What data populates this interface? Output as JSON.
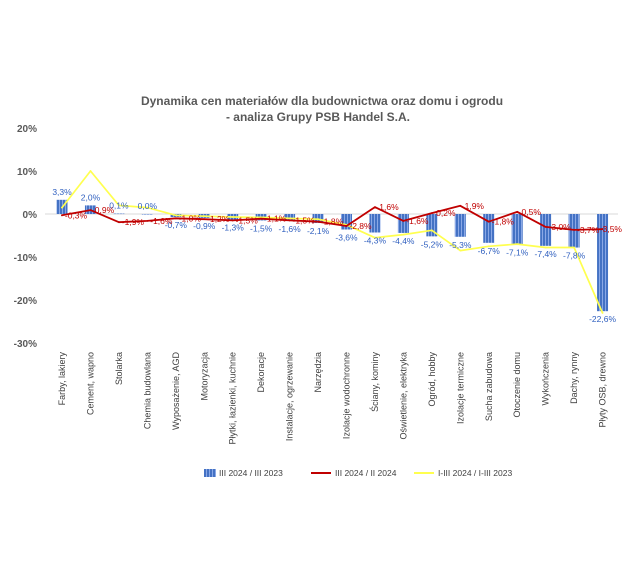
{
  "chart_data": {
    "type": "bar",
    "title": "Dynamika cen materiałów dla budownictwa oraz domu i ogrodu",
    "subtitle": "- analiza Grupy PSB Handel S.A.",
    "categories": [
      "Farby, lakiery",
      "Cement, wapno",
      "Stolarka",
      "Chemia budowlana",
      "Wyposażenie, AGD",
      "Motoryzacja",
      "Płytki, łazienki, kuchnie",
      "Dekoracje",
      "Instalacje, ogrzewanie",
      "Narzędzia",
      "Izolacje wodochronne",
      "Ściany, kominy",
      "Oświetlenie, elektryka",
      "Ogród, hobby",
      "Izolacje termiczne",
      "Sucha zabudowa",
      "Otoczenie domu",
      "Wykończenia",
      "Dachy, rynny",
      "Płyty OSB, drewno"
    ],
    "ylim": [
      -30,
      20
    ],
    "yticks": [
      20,
      10,
      0,
      -10,
      -20,
      -30
    ],
    "ytick_labels": [
      "20%",
      "10%",
      "0%",
      "-10%",
      "-20%",
      "-30%"
    ],
    "grid": false,
    "legend_position": "bottom",
    "series": [
      {
        "name": "III 2024 / III 2023",
        "type": "bar",
        "color": "#4472c4",
        "data_labels": true,
        "values": [
          3.3,
          2.0,
          0.1,
          0.0,
          -0.7,
          -0.9,
          -1.3,
          -1.5,
          -1.6,
          -2.1,
          -3.6,
          -4.3,
          -4.4,
          -5.2,
          -5.3,
          -6.7,
          -7.1,
          -7.4,
          -7.8,
          -22.6
        ]
      },
      {
        "name": "III 2024 / II 2024",
        "type": "line",
        "color": "#c00000",
        "data_labels": true,
        "values": [
          -0.3,
          0.9,
          -1.9,
          -1.6,
          -1.0,
          -1.2,
          -1.5,
          -1.1,
          -1.5,
          -1.8,
          -2.8,
          1.6,
          -1.6,
          0.2,
          1.9,
          -1.8,
          0.5,
          -3.0,
          -3.7,
          -3.5
        ]
      },
      {
        "name": "I-III 2024 / I-III 2023",
        "type": "line",
        "color": "#ffff4f",
        "data_labels": false,
        "values": [
          1.5,
          10.0,
          2.0,
          1.5,
          -0.3,
          -0.5,
          -0.7,
          -0.8,
          -1.0,
          -1.2,
          -2.5,
          -5.5,
          -4.8,
          -3.8,
          -8.5,
          -7.5,
          -7.0,
          -7.8,
          -7.8,
          -23.0
        ]
      }
    ]
  }
}
